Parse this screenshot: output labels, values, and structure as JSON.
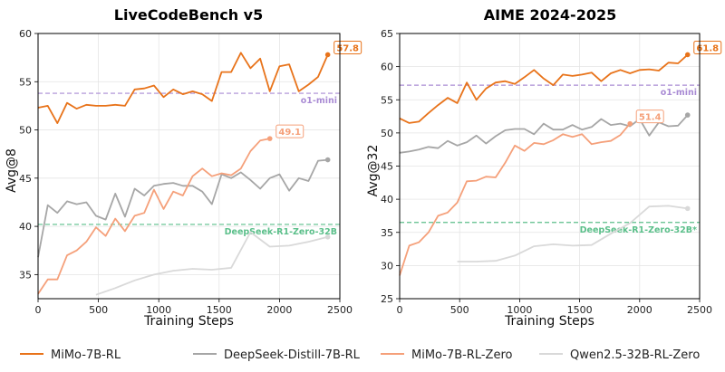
{
  "legend": [
    {
      "name": "MiMo-7B-RL",
      "color": "#E8731A"
    },
    {
      "name": "DeepSeek-Distill-7B-RL",
      "color": "#A6A6A6"
    },
    {
      "name": "MiMo-7B-RL-Zero",
      "color": "#F5A07A"
    },
    {
      "name": "Qwen2.5-32B-RL-Zero",
      "color": "#D9D9D9"
    }
  ],
  "chart_data": [
    {
      "type": "line",
      "title": "LiveCodeBench v5",
      "xlabel": "Training Steps",
      "ylabel": "Avg@8",
      "xlim": [
        0,
        2500
      ],
      "ylim": [
        32.5,
        60
      ],
      "xticks": [
        0,
        500,
        1000,
        1500,
        2000,
        2500
      ],
      "yticks": [
        35,
        40,
        45,
        50,
        55,
        60
      ],
      "grid": true,
      "reference_lines": [
        {
          "label": "o1-mini",
          "y": 53.8,
          "color": "#A98BD4"
        },
        {
          "label": "DeepSeek-R1-Zero-32B",
          "y": 40.2,
          "color": "#5BBF8A"
        }
      ],
      "end_labels": [
        {
          "series": "MiMo-7B-RL",
          "text": "57.8"
        },
        {
          "series": "MiMo-7B-RL-Zero",
          "text": "49.1"
        }
      ],
      "series": [
        {
          "name": "MiMo-7B-RL",
          "color": "#E8731A",
          "x": [
            0,
            80,
            160,
            240,
            320,
            400,
            480,
            560,
            640,
            720,
            800,
            880,
            960,
            1040,
            1120,
            1200,
            1280,
            1360,
            1440,
            1520,
            1600,
            1680,
            1760,
            1840,
            1920,
            2000,
            2080,
            2160,
            2240,
            2320,
            2400
          ],
          "y": [
            52.3,
            52.5,
            50.7,
            52.8,
            52.2,
            52.6,
            52.5,
            52.5,
            52.6,
            52.5,
            54.2,
            54.3,
            54.6,
            53.4,
            54.2,
            53.7,
            54.0,
            53.7,
            53.0,
            56.0,
            56.0,
            58.0,
            56.4,
            57.4,
            54.0,
            56.6,
            56.8,
            54.0,
            54.7,
            55.5,
            57.8
          ]
        },
        {
          "name": "DeepSeek-Distill-7B-RL",
          "color": "#A6A6A6",
          "x": [
            0,
            80,
            160,
            240,
            320,
            400,
            480,
            560,
            640,
            720,
            800,
            880,
            960,
            1040,
            1120,
            1200,
            1280,
            1360,
            1440,
            1520,
            1600,
            1680,
            1760,
            1840,
            1920,
            2000,
            2080,
            2160,
            2240,
            2320,
            2400
          ],
          "y": [
            36.8,
            42.2,
            41.4,
            42.6,
            42.3,
            42.5,
            41.1,
            40.7,
            43.4,
            41.0,
            43.9,
            43.2,
            44.2,
            44.4,
            44.5,
            44.2,
            44.2,
            43.6,
            42.3,
            45.4,
            45.0,
            45.6,
            44.8,
            43.9,
            45.0,
            45.4,
            43.7,
            45.0,
            44.7,
            46.8,
            46.9
          ]
        },
        {
          "name": "MiMo-7B-RL-Zero",
          "color": "#F5A07A",
          "x": [
            0,
            80,
            160,
            240,
            320,
            400,
            480,
            560,
            640,
            720,
            800,
            880,
            960,
            1040,
            1120,
            1200,
            1280,
            1360,
            1440,
            1520,
            1600,
            1680,
            1760,
            1840,
            1920
          ],
          "y": [
            33.0,
            34.5,
            34.5,
            37.0,
            37.5,
            38.4,
            39.9,
            39.0,
            40.8,
            39.5,
            41.1,
            41.4,
            43.8,
            41.8,
            43.6,
            43.2,
            45.2,
            46.0,
            45.2,
            45.5,
            45.3,
            46.0,
            47.8,
            48.9,
            49.1
          ]
        },
        {
          "name": "Qwen2.5-32B-RL-Zero",
          "color": "#D9D9D9",
          "x": [
            480,
            640,
            800,
            960,
            1120,
            1280,
            1440,
            1600,
            1760,
            1920,
            2080,
            2240,
            2400
          ],
          "y": [
            32.9,
            33.6,
            34.4,
            35.0,
            35.4,
            35.6,
            35.5,
            35.7,
            39.4,
            37.9,
            38.0,
            38.4,
            38.9
          ]
        }
      ]
    },
    {
      "type": "line",
      "title": "AIME 2024-2025",
      "xlabel": "Training Steps",
      "ylabel": "Avg@32",
      "xlim": [
        0,
        2500
      ],
      "ylim": [
        25,
        65
      ],
      "xticks": [
        0,
        500,
        1000,
        1500,
        2000,
        2500
      ],
      "yticks": [
        25,
        30,
        35,
        40,
        45,
        50,
        55,
        60,
        65
      ],
      "grid": true,
      "reference_lines": [
        {
          "label": "o1-mini",
          "y": 57.2,
          "color": "#A98BD4"
        },
        {
          "label": "DeepSeek-R1-Zero-32B*",
          "y": 36.5,
          "color": "#5BBF8A"
        }
      ],
      "end_labels": [
        {
          "series": "MiMo-7B-RL",
          "text": "61.8"
        },
        {
          "series": "MiMo-7B-RL-Zero",
          "text": "51.4"
        }
      ],
      "series": [
        {
          "name": "MiMo-7B-RL",
          "color": "#E8731A",
          "x": [
            0,
            80,
            160,
            240,
            320,
            400,
            480,
            560,
            640,
            720,
            800,
            880,
            960,
            1040,
            1120,
            1200,
            1280,
            1360,
            1440,
            1520,
            1600,
            1680,
            1760,
            1840,
            1920,
            2000,
            2080,
            2160,
            2240,
            2320,
            2400
          ],
          "y": [
            52.2,
            51.5,
            51.7,
            53.0,
            54.2,
            55.3,
            54.5,
            57.6,
            55.0,
            56.7,
            57.6,
            57.8,
            57.4,
            58.4,
            59.5,
            58.2,
            57.2,
            58.8,
            58.6,
            58.8,
            59.1,
            57.8,
            59.0,
            59.5,
            59.0,
            59.5,
            59.6,
            59.4,
            60.6,
            60.5,
            61.8
          ]
        },
        {
          "name": "DeepSeek-Distill-7B-RL",
          "color": "#A6A6A6",
          "x": [
            0,
            80,
            160,
            240,
            320,
            400,
            480,
            560,
            640,
            720,
            800,
            880,
            960,
            1040,
            1120,
            1200,
            1280,
            1360,
            1440,
            1520,
            1600,
            1680,
            1760,
            1840,
            1920,
            2000,
            2080,
            2160,
            2240,
            2320,
            2400
          ],
          "y": [
            47.0,
            47.2,
            47.5,
            47.9,
            47.7,
            48.8,
            48.1,
            48.6,
            49.6,
            48.4,
            49.5,
            50.4,
            50.6,
            50.6,
            49.8,
            51.4,
            50.5,
            50.5,
            51.2,
            50.5,
            50.9,
            52.1,
            51.2,
            51.4,
            51.0,
            52.1,
            49.6,
            51.6,
            51.0,
            51.1,
            52.7
          ]
        },
        {
          "name": "MiMo-7B-RL-Zero",
          "color": "#F5A07A",
          "x": [
            0,
            80,
            160,
            240,
            320,
            400,
            480,
            560,
            640,
            720,
            800,
            880,
            960,
            1040,
            1120,
            1200,
            1280,
            1360,
            1440,
            1520,
            1600,
            1680,
            1760,
            1840,
            1920
          ],
          "y": [
            28.5,
            33.0,
            33.5,
            35.0,
            37.5,
            38.0,
            39.5,
            42.7,
            42.8,
            43.4,
            43.3,
            45.5,
            48.1,
            47.3,
            48.5,
            48.3,
            48.9,
            49.8,
            49.4,
            49.8,
            48.3,
            48.6,
            48.8,
            49.7,
            51.4
          ]
        },
        {
          "name": "Qwen2.5-32B-RL-Zero",
          "color": "#D9D9D9",
          "x": [
            480,
            640,
            800,
            960,
            1120,
            1280,
            1440,
            1600,
            1760,
            1920,
            2080,
            2240,
            2400
          ],
          "y": [
            30.6,
            30.6,
            30.7,
            31.5,
            32.9,
            33.2,
            33.0,
            33.1,
            34.8,
            36.4,
            38.9,
            39.0,
            38.6
          ]
        }
      ]
    }
  ]
}
